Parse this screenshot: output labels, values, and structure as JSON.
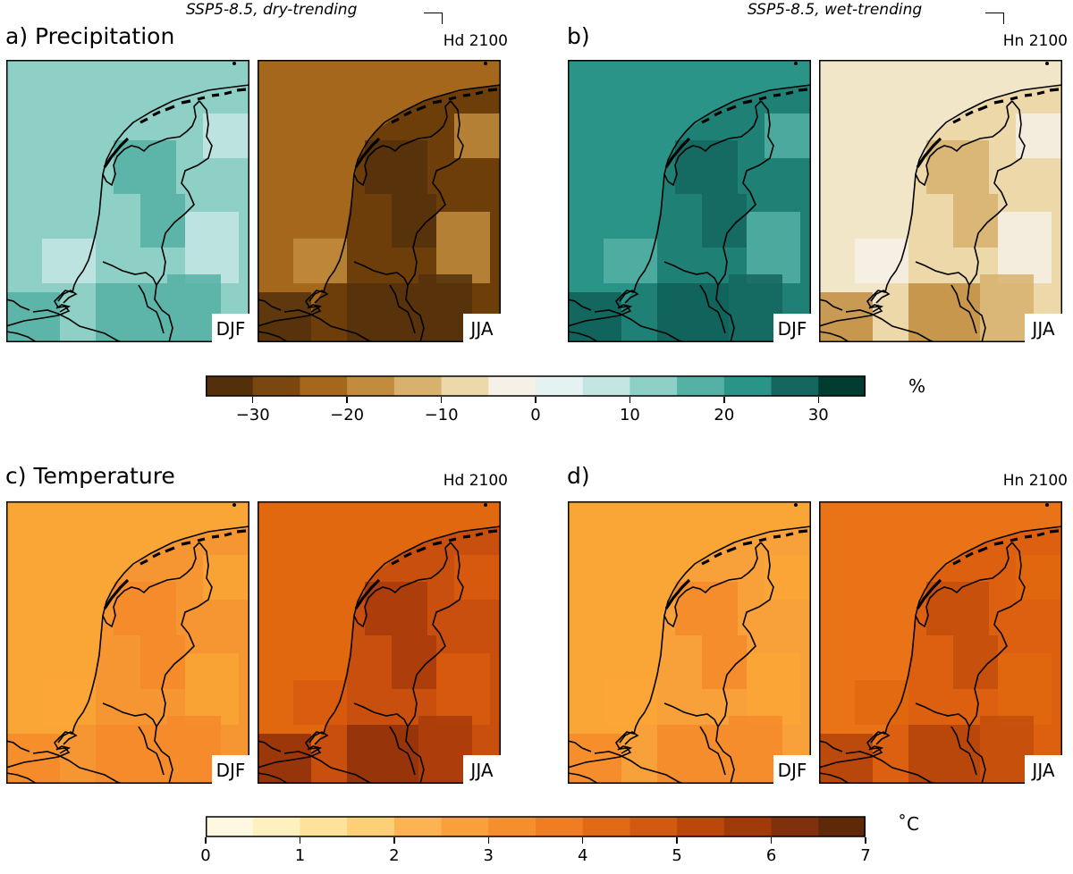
{
  "panels": [
    {
      "id": "a",
      "title": "a) Precipitation",
      "scenario": "Hd 2100",
      "note": "SSP5-8.5, dry-trending",
      "maps": [
        {
          "season": "DJF",
          "colors": {
            "land": "#8ed0c6",
            "sea": "#8ed0c6",
            "blobA": "#55b0a5",
            "blobB": "#c4e6e3",
            "blobC": "#55b0a5"
          }
        },
        {
          "season": "JJA",
          "colors": {
            "land": "#6e3e0a",
            "sea": "#a5671b",
            "blobA": "#54300a",
            "blobB": "#c18c3e",
            "blobC": "#54300a"
          }
        }
      ]
    },
    {
      "id": "b",
      "title": "b)",
      "scenario": "Hn 2100",
      "note": "SSP5-8.5, wet-trending",
      "maps": [
        {
          "season": "DJF",
          "colors": {
            "land": "#1f8076",
            "sea": "#2b9489",
            "blobA": "#14665e",
            "blobB": "#55b0a5",
            "blobC": "#0f5f57"
          }
        },
        {
          "season": "JJA",
          "colors": {
            "land": "#ecd8a8",
            "sea": "#f1e6c8",
            "blobA": "#d7b16d",
            "blobB": "#f6f1e7",
            "blobC": "#c18c3e"
          }
        }
      ]
    },
    {
      "id": "c",
      "title": "c) Temperature",
      "scenario": "Hd 2100",
      "note": "",
      "maps": [
        {
          "season": "DJF",
          "colors": {
            "land": "#f69632",
            "sea": "#faa636",
            "blobA": "#f48a2a",
            "blobB": "#faa636",
            "blobC": "#f48a2a"
          }
        },
        {
          "season": "JJA",
          "colors": {
            "land": "#c94f0e",
            "sea": "#e2680f",
            "blobA": "#a83a09",
            "blobB": "#d85a0e",
            "blobC": "#8e2f08"
          }
        }
      ]
    },
    {
      "id": "d",
      "title": "d)",
      "scenario": "Hn 2100",
      "note": "",
      "maps": [
        {
          "season": "DJF",
          "colors": {
            "land": "#f8a03a",
            "sea": "#faa636",
            "blobA": "#f48a2a",
            "blobB": "#faa636",
            "blobC": "#f48a2a"
          }
        },
        {
          "season": "JJA",
          "colors": {
            "land": "#dc6010",
            "sea": "#ea7317",
            "blobA": "#c34d0c",
            "blobB": "#e2680f",
            "blobC": "#b3430a"
          }
        }
      ]
    }
  ],
  "colorbars": [
    {
      "unit": "%",
      "range": [
        -35,
        35
      ],
      "ticks": [
        "−30",
        "−20",
        "−10",
        "0",
        "10",
        "20",
        "30"
      ],
      "tick_values": [
        -30,
        -20,
        -10,
        0,
        10,
        20,
        30
      ],
      "colors": [
        "#54300a",
        "#7a4710",
        "#a5671b",
        "#c18c3e",
        "#d7b16d",
        "#ecd8a8",
        "#f6f1e7",
        "#e4f3f1",
        "#c4e6e3",
        "#8ed0c6",
        "#55b0a5",
        "#2b9489",
        "#14665e",
        "#003c30"
      ]
    },
    {
      "unit": "˚C",
      "range": [
        0,
        7
      ],
      "ticks": [
        "0",
        "1",
        "2",
        "3",
        "4",
        "5",
        "6",
        "7"
      ],
      "tick_values": [
        0,
        1,
        2,
        3,
        4,
        5,
        6,
        7
      ],
      "colors": [
        "#fff8e1",
        "#fff0c0",
        "#fee299",
        "#fdcf77",
        "#fbb451",
        "#f9a03a",
        "#f68e2b",
        "#f07d21",
        "#e26a15",
        "#d2590f",
        "#bb470b",
        "#a03a09",
        "#80310b",
        "#5e2809"
      ]
    }
  ]
}
